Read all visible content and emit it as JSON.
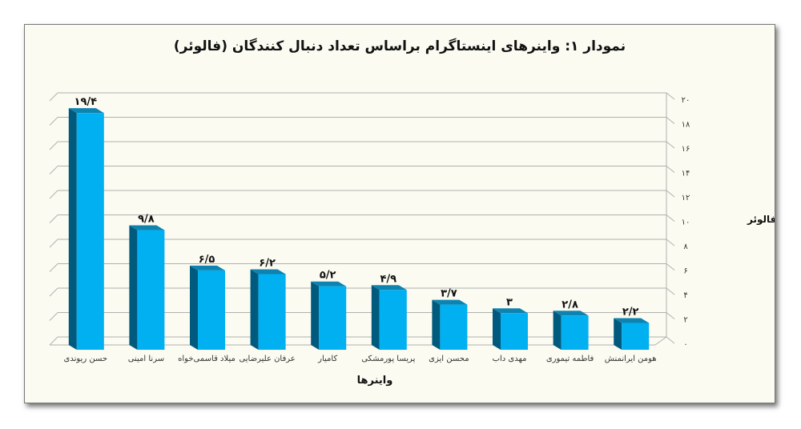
{
  "chart_data": {
    "type": "bar",
    "title": "نمودار ۱: واینرهای اینستاگرام براساس تعداد دنبال کنندگان (فالوئر)",
    "xlabel": "واینرها",
    "ylabel": "تعداد فالوئر",
    "categories": [
      "حسن ریوندی",
      "سرنا امینی",
      "میلاد قاسمی‌خواه",
      "عرفان علیرضایی",
      "کامیار",
      "پریسا پورمشکی",
      "محسن ایزی",
      "مهدی داب",
      "فاطمه تیموری",
      "هومن ایرانمنش"
    ],
    "values": [
      19.4,
      9.8,
      6.5,
      6.2,
      5.2,
      4.9,
      3.7,
      3,
      2.8,
      2.2
    ],
    "value_labels": [
      "۱۹/۴",
      "۹/۸",
      "۶/۵",
      "۶/۲",
      "۵/۲",
      "۴/۹",
      "۳/۷",
      "۳",
      "۲/۸",
      "۲/۲"
    ],
    "ylim": [
      0,
      20
    ],
    "yticks": [
      0,
      2,
      4,
      6,
      8,
      10,
      12,
      14,
      16,
      18,
      20
    ],
    "ytick_labels": [
      "۰",
      "۲",
      "۴",
      "۶",
      "۸",
      "۱۰",
      "۱۲",
      "۱۴",
      "۱۶",
      "۱۸",
      "۲۰"
    ],
    "y_axis_side": "right",
    "grid": true,
    "style": "3d-column",
    "colors": {
      "bar_front": "#00b0f0",
      "bar_side": "#005a7e",
      "bar_top": "#0f83b0",
      "grid": "#b0b0b0",
      "background": "#fbfbf2"
    }
  }
}
